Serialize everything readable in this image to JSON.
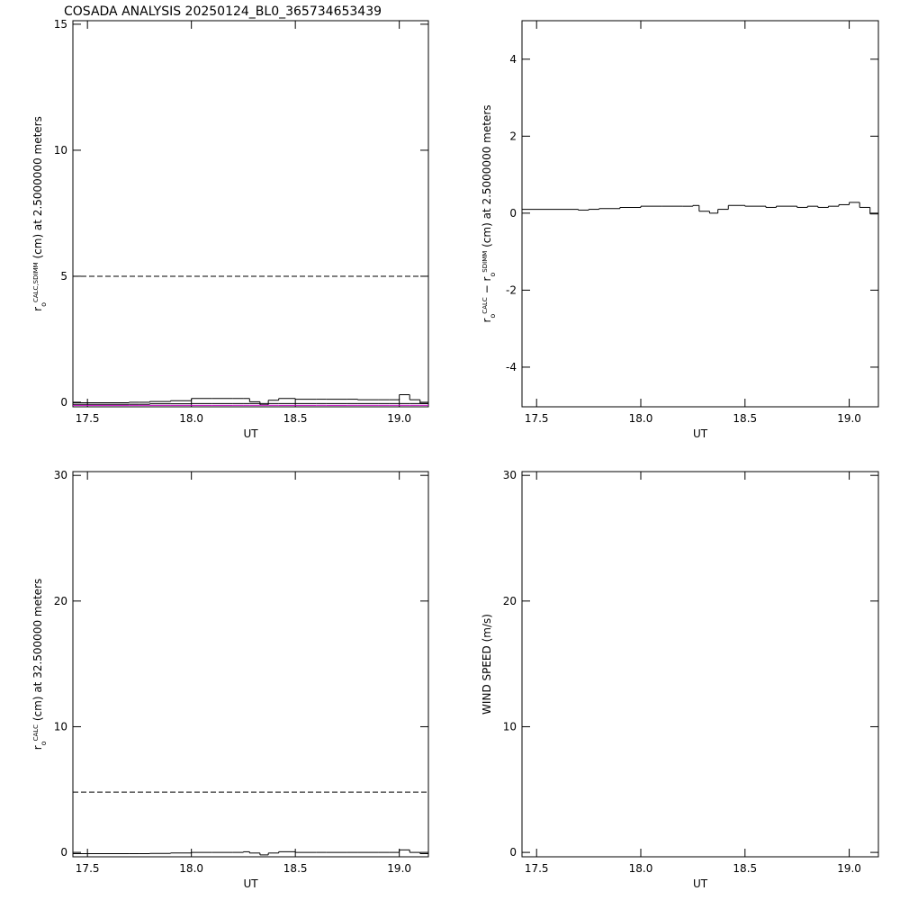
{
  "chart_data": [
    {
      "type": "line",
      "title": "COSADA ANALYSIS 20250124_BL0_365734653439",
      "xlabel": "UT",
      "ylabel_parts": [
        {
          "text": "r"
        },
        {
          "text": "o",
          "shift": "sub"
        },
        {
          "text": "CALC,SDIMM",
          "shift": "sup"
        },
        {
          "text": " (cm)  at  2.5000000 meters"
        }
      ],
      "xlim": [
        17.43,
        19.14
      ],
      "ylim": [
        -0.18,
        15.14
      ],
      "xticks": [
        17.5,
        {
          "value": 18,
          "label": "18.0"
        },
        18.5,
        {
          "value": 19,
          "label": "19.0"
        }
      ],
      "yticks": [
        0,
        5,
        10,
        15
      ],
      "reference_lines": [
        {
          "value": 5,
          "style": "dashed",
          "color": "#000000"
        }
      ],
      "x": [
        17.43,
        17.7,
        17.75,
        17.8,
        17.9,
        18.0,
        18.1,
        18.2,
        18.25,
        18.28,
        18.33,
        18.37,
        18.42,
        18.5,
        18.6,
        18.65,
        18.75,
        18.8,
        18.85,
        18.9,
        18.95,
        19.0,
        19.05,
        19.1
      ],
      "series": [
        {
          "color": "#000000",
          "values": [
            -0.02,
            0.0,
            0.0,
            0.03,
            0.06,
            0.15,
            0.15,
            0.15,
            0.15,
            0.02,
            -0.05,
            0.08,
            0.15,
            0.12,
            0.12,
            0.12,
            0.12,
            0.1,
            0.1,
            0.1,
            0.1,
            0.3,
            0.1,
            -0.05
          ]
        },
        {
          "color": "#000000",
          "values": [
            -0.08,
            -0.08,
            -0.08,
            -0.06,
            -0.06,
            -0.05,
            -0.05,
            -0.05,
            -0.05,
            -0.05,
            -0.1,
            -0.05,
            -0.05,
            -0.05,
            -0.05,
            -0.05,
            -0.05,
            -0.05,
            -0.05,
            -0.05,
            -0.05,
            -0.05,
            -0.05,
            -0.05
          ]
        },
        {
          "color": "#c000c0",
          "values": [
            -0.12,
            -0.12,
            -0.12,
            -0.12,
            -0.12,
            -0.12,
            -0.12,
            -0.12,
            -0.12,
            -0.12,
            -0.12,
            -0.12,
            -0.12,
            -0.12,
            -0.12,
            -0.12,
            -0.12,
            -0.12,
            -0.12,
            -0.12,
            -0.12,
            -0.12,
            -0.12,
            -0.12
          ]
        }
      ]
    },
    {
      "type": "line",
      "xlabel": "UT",
      "ylabel_parts": [
        {
          "text": "r"
        },
        {
          "text": "o",
          "shift": "sub"
        },
        {
          "text": "CALC",
          "shift": "sup"
        },
        {
          "text": "  −  r"
        },
        {
          "text": "o",
          "shift": "sub"
        },
        {
          "text": "SDIMM",
          "shift": "sup"
        },
        {
          "text": " (cm)  at  2.5000000 meters"
        }
      ],
      "xlim": [
        17.43,
        19.14
      ],
      "ylim": [
        -5.03,
        5.0
      ],
      "xticks": [
        17.5,
        {
          "value": 18,
          "label": "18.0"
        },
        18.5,
        {
          "value": 19,
          "label": "19.0"
        }
      ],
      "yticks": [
        -4,
        -2,
        0,
        2,
        4
      ],
      "x": [
        17.43,
        17.7,
        17.75,
        17.8,
        17.9,
        18.0,
        18.1,
        18.2,
        18.25,
        18.28,
        18.33,
        18.37,
        18.42,
        18.5,
        18.6,
        18.65,
        18.75,
        18.8,
        18.85,
        18.9,
        18.95,
        19.0,
        19.05,
        19.1
      ],
      "series": [
        {
          "color": "#000000",
          "values": [
            0.1,
            0.08,
            0.1,
            0.12,
            0.15,
            0.18,
            0.18,
            0.18,
            0.2,
            0.05,
            0.0,
            0.1,
            0.2,
            0.18,
            0.15,
            0.18,
            0.15,
            0.18,
            0.15,
            0.18,
            0.22,
            0.28,
            0.15,
            -0.02
          ]
        }
      ]
    },
    {
      "type": "line",
      "xlabel": "UT",
      "ylabel_parts": [
        {
          "text": "r"
        },
        {
          "text": "o",
          "shift": "sub"
        },
        {
          "text": "CALC",
          "shift": "sup"
        },
        {
          "text": " (cm)  at  32.500000 meters"
        }
      ],
      "xlim": [
        17.43,
        19.14
      ],
      "ylim": [
        -0.35,
        30.3
      ],
      "xticks": [
        17.5,
        {
          "value": 18,
          "label": "18.0"
        },
        18.5,
        {
          "value": 19,
          "label": "19.0"
        }
      ],
      "yticks": [
        0,
        10,
        20,
        30
      ],
      "reference_lines": [
        {
          "value": 4.8,
          "style": "dashed",
          "color": "#000000"
        }
      ],
      "x": [
        17.43,
        17.7,
        17.75,
        17.8,
        17.9,
        18.0,
        18.1,
        18.2,
        18.25,
        18.28,
        18.33,
        18.37,
        18.42,
        18.5,
        18.6,
        18.65,
        18.75,
        18.8,
        18.85,
        18.9,
        18.95,
        19.0,
        19.05,
        19.1
      ],
      "series": [
        {
          "color": "#000000",
          "values": [
            -0.1,
            -0.1,
            -0.1,
            -0.08,
            -0.05,
            0.0,
            0.0,
            0.0,
            0.05,
            -0.05,
            -0.2,
            -0.05,
            0.05,
            0.0,
            0.0,
            0.0,
            0.0,
            0.0,
            0.0,
            0.0,
            0.0,
            0.2,
            0.0,
            -0.1
          ]
        }
      ]
    },
    {
      "type": "line",
      "xlabel": "UT",
      "ylabel_parts": [
        {
          "text": "WIND SPEED (m/s)"
        }
      ],
      "xlim": [
        17.43,
        19.14
      ],
      "ylim": [
        -0.35,
        30.3
      ],
      "xticks": [
        17.5,
        {
          "value": 18,
          "label": "18.0"
        },
        18.5,
        {
          "value": 19,
          "label": "19.0"
        }
      ],
      "yticks": [
        0,
        10,
        20,
        30
      ],
      "series": []
    }
  ]
}
